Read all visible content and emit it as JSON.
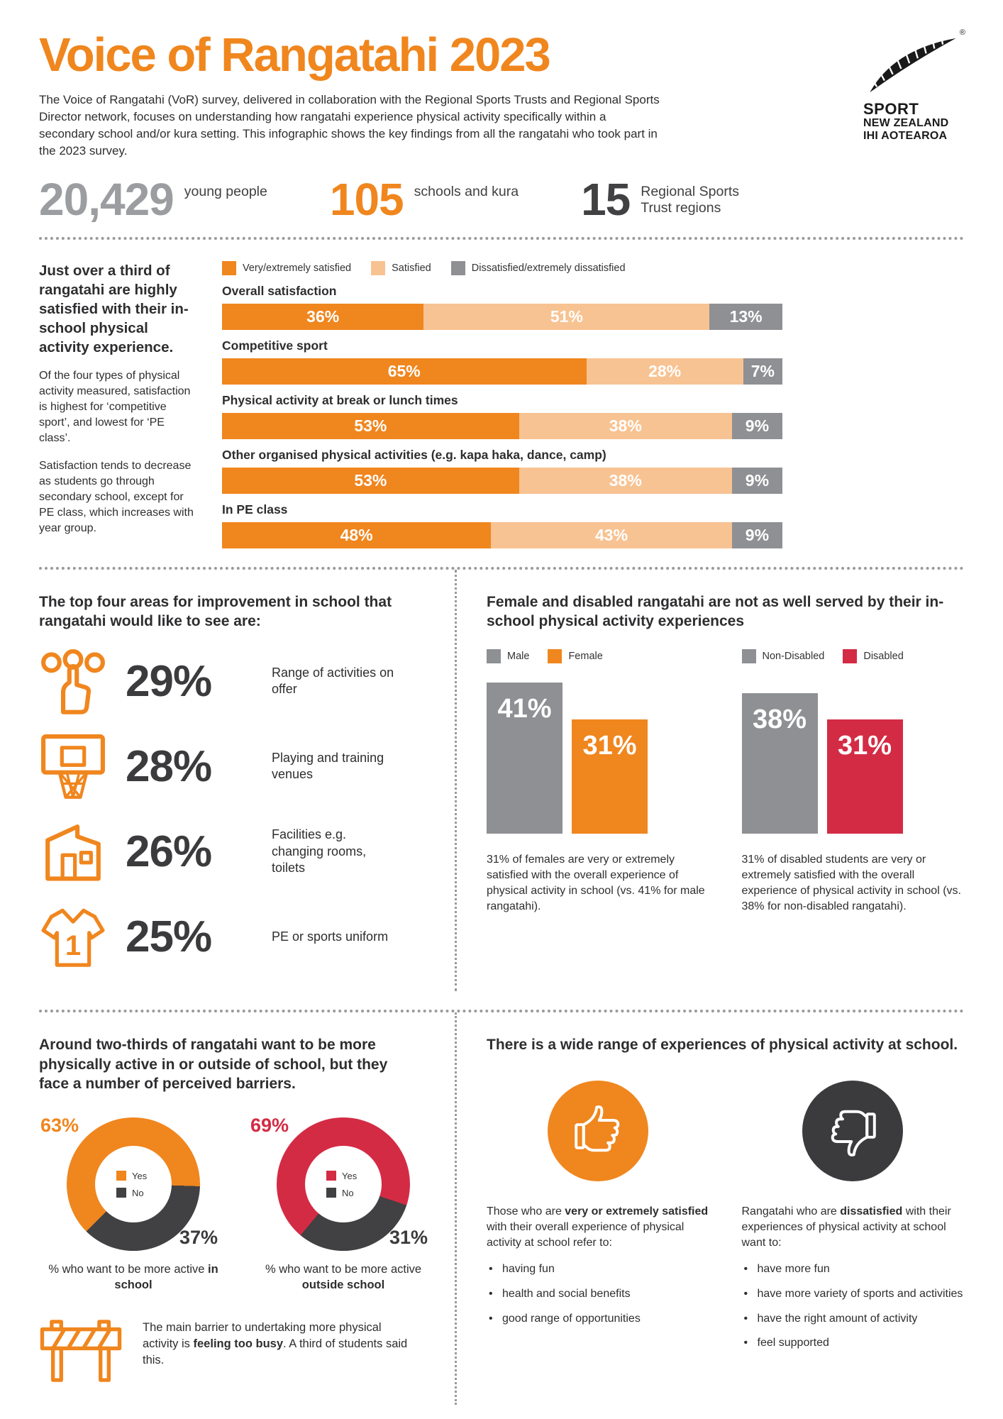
{
  "colors": {
    "orange": "#F0861E",
    "light_orange": "#F8C392",
    "gray": "#8F9093",
    "dark": "#414042",
    "red": "#D42B45",
    "stat_gray": "#9B9DA0",
    "text": "#2E2E30"
  },
  "header": {
    "title": "Voice of Rangatahi 2023",
    "intro": "The Voice of Rangatahi (VoR) survey, delivered in collaboration with the Regional Sports Trusts and Regional Sports Director network, focuses on understanding how rangatahi experience physical activity specifically within a secondary school and/or kura setting. This infographic shows the key findings from all the rangatahi who took part in the 2023 survey.",
    "logo": {
      "line1": "SPORT",
      "line2": "NEW ZEALAND",
      "line3": "IHI AOTEAROA",
      "trademark": "®"
    }
  },
  "stats": [
    {
      "value": "20,429",
      "label": "young people"
    },
    {
      "value": "105",
      "label": "schools and kura"
    },
    {
      "value": "15",
      "label": "Regional Sports Trust regions"
    }
  ],
  "satisfaction": {
    "heading": "Just over a third of rangatahi are highly satisfied with their in-school physical activity experience.",
    "body1": "Of the four types of physical activity measured, satisfaction is highest for ‘competitive sport’, and lowest for ‘PE class’.",
    "body2": "Satisfaction tends to decrease as students go through secondary school, except for PE class, which increases with year group.",
    "legend": [
      "Very/extremely satisfied",
      "Satisfied",
      "Dissatisfied/extremely dissatisfied"
    ]
  },
  "chart_data": [
    {
      "type": "bar",
      "variant": "stacked-horizontal",
      "title": "In-school physical activity satisfaction",
      "categories": [
        "Overall satisfaction",
        "Competitive sport",
        "Physical activity at break or lunch times",
        "Other organised physical activities (e.g. kapa haka, dance, camp)",
        "In PE class"
      ],
      "series": [
        {
          "name": "Very/extremely satisfied",
          "values": [
            36,
            65,
            53,
            53,
            48
          ]
        },
        {
          "name": "Satisfied",
          "values": [
            51,
            28,
            38,
            38,
            43
          ]
        },
        {
          "name": "Dissatisfied/extremely dissatisfied",
          "values": [
            13,
            7,
            9,
            9,
            9
          ]
        }
      ],
      "unit": "%",
      "xlim": [
        0,
        100
      ],
      "legend_position": "top"
    },
    {
      "type": "bar",
      "title": "Very/extremely satisfied by gender",
      "categories": [
        "Male",
        "Female"
      ],
      "values": [
        41,
        31
      ],
      "unit": "%"
    },
    {
      "type": "bar",
      "title": "Very/extremely satisfied by disability",
      "categories": [
        "Non-Disabled",
        "Disabled"
      ],
      "values": [
        38,
        31
      ],
      "unit": "%"
    },
    {
      "type": "pie",
      "title": "% who want to be more active in school",
      "labels": [
        "Yes",
        "No"
      ],
      "values": [
        63,
        37
      ]
    },
    {
      "type": "pie",
      "title": "% who want to be more active outside school",
      "labels": [
        "Yes",
        "No"
      ],
      "values": [
        69,
        31
      ]
    }
  ],
  "improvements": {
    "heading": "The top four areas for improvement in school that rangatahi would like to see are:",
    "items": [
      {
        "pct": "29%",
        "label": "Range of activities on offer",
        "icon": "choice-icon"
      },
      {
        "pct": "28%",
        "label": "Playing and training venues",
        "icon": "basketball-hoop-icon"
      },
      {
        "pct": "26%",
        "label": "Facilities e.g. changing rooms, toilets",
        "icon": "facilities-icon"
      },
      {
        "pct": "25%",
        "label": "PE or sports uniform",
        "icon": "uniform-icon"
      }
    ]
  },
  "equity": {
    "heading": "Female and disabled rangatahi are not as well served by their in-school physical activity experiences",
    "groups": [
      {
        "legend": [
          {
            "label": "Male",
            "color_key": "gray"
          },
          {
            "label": "Female",
            "color_key": "orange"
          }
        ],
        "bars": [
          {
            "label": "41%",
            "value": 41,
            "color_key": "gray"
          },
          {
            "label": "31%",
            "value": 31,
            "color_key": "orange"
          }
        ],
        "caption": "31% of females are very or extremely satisfied with the overall experience of physical activity in school (vs. 41% for male rangatahi)."
      },
      {
        "legend": [
          {
            "label": "Non-Disabled",
            "color_key": "gray"
          },
          {
            "label": "Disabled",
            "color_key": "red"
          }
        ],
        "bars": [
          {
            "label": "38%",
            "value": 38,
            "color_key": "gray"
          },
          {
            "label": "31%",
            "value": 31,
            "color_key": "red"
          }
        ],
        "caption": "31% of disabled students are very or extremely satisfied with the overall experience of physical activity in school (vs. 38% for non-disabled rangatahi)."
      }
    ]
  },
  "barriers": {
    "heading": "Around two-thirds of rangatahi want to be more physically active in or outside of school, but they face a number of perceived barriers.",
    "donuts": [
      {
        "yes": 63,
        "no": 37,
        "yes_label": "63%",
        "no_label": "37%",
        "yes_color_key": "orange",
        "start_deg": 225,
        "legend_yes": "Yes",
        "legend_no": "No",
        "caption_prefix": "% who want to be more active ",
        "caption_bold": "in school"
      },
      {
        "yes": 69,
        "no": 31,
        "yes_label": "69%",
        "no_label": "31%",
        "yes_color_key": "red",
        "start_deg": 220,
        "legend_yes": "Yes",
        "legend_no": "No",
        "caption_prefix": "% who want to be more active ",
        "caption_bold": "outside school"
      }
    ],
    "note_prefix": "The main barrier to undertaking more physical activity is ",
    "note_bold": "feeling too busy",
    "note_suffix": ". A third of students said this."
  },
  "experiences": {
    "heading": "There is a wide range of experiences of physical activity at school.",
    "positive": {
      "icon": "thumbs-up-icon",
      "intro_prefix": "Those who are ",
      "intro_bold": "very or extremely satisfied",
      "intro_suffix": " with their overall experience of physical activity at school refer to:",
      "bullets": [
        "having fun",
        "health and social benefits",
        "good range of opportunities"
      ]
    },
    "negative": {
      "icon": "thumbs-down-icon",
      "intro_prefix": "Rangatahi who are ",
      "intro_bold": "dissatisfied",
      "intro_suffix": " with their experiences of physical activity at school want to:",
      "bullets": [
        "have more fun",
        "have more variety of sports and activities",
        "have the right amount of activity",
        "feel supported"
      ]
    }
  }
}
